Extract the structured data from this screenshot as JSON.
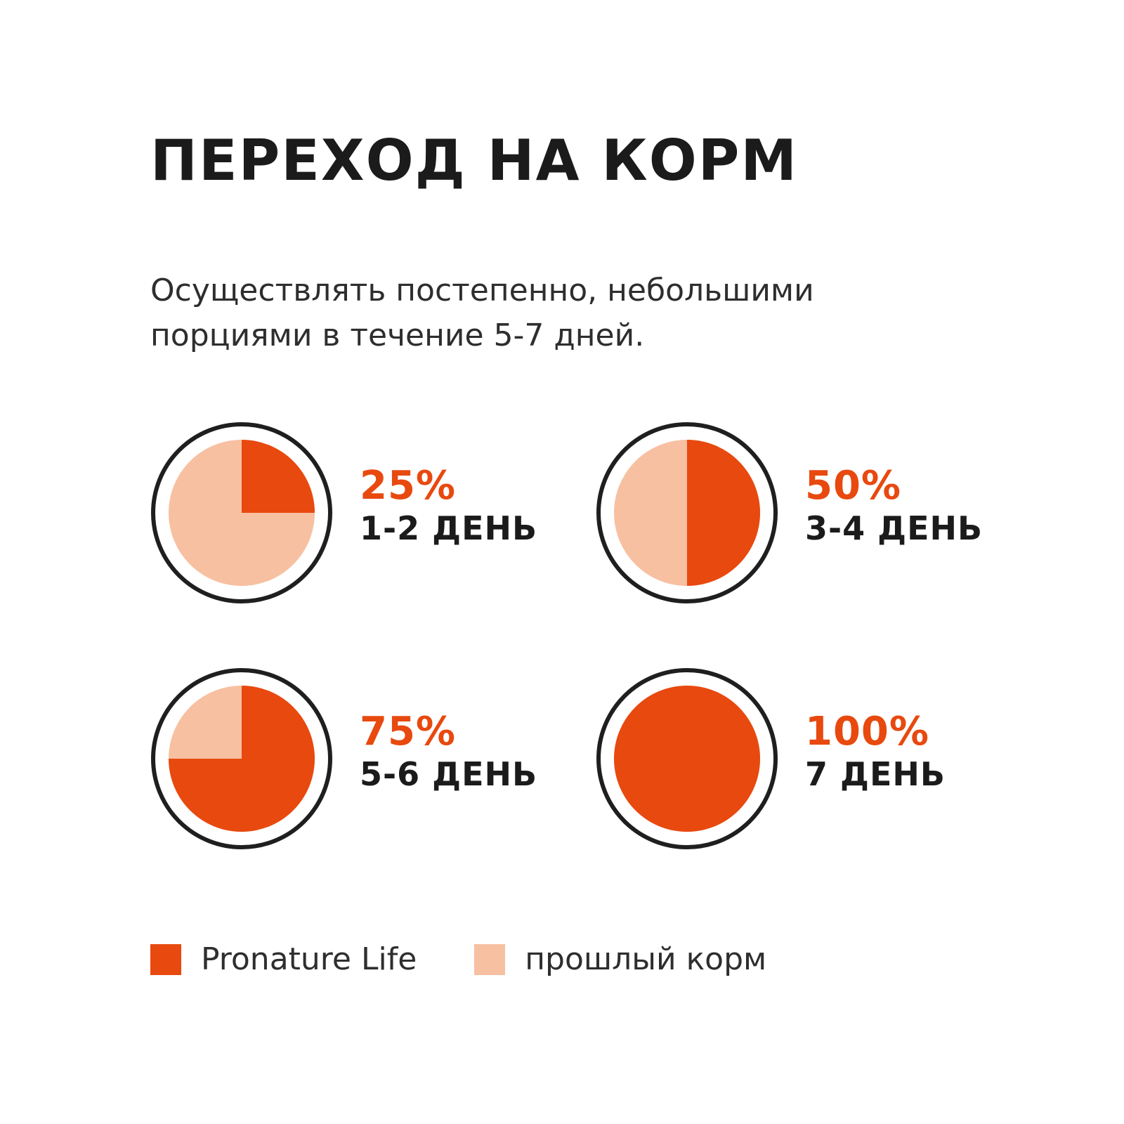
{
  "title": "ПЕРЕХОД НА КОРМ",
  "subtitle_lines": [
    "Осуществлять постепенно, небольшими",
    "порциями в течение 5-7 дней."
  ],
  "colors": {
    "new_food": "#e8490f",
    "old_food": "#f7c0a1",
    "ring": "#1f1f1f"
  },
  "chart_data": {
    "type": "pie",
    "items": [
      {
        "percent_label": "25%",
        "day_label": "1-2 ДЕНЬ",
        "new_food_share": 25,
        "old_food_share": 75
      },
      {
        "percent_label": "50%",
        "day_label": "3-4 ДЕНЬ",
        "new_food_share": 50,
        "old_food_share": 50
      },
      {
        "percent_label": "75%",
        "day_label": "5-6 ДЕНЬ",
        "new_food_share": 75,
        "old_food_share": 25
      },
      {
        "percent_label": "100%",
        "day_label": "7 ДЕНЬ",
        "new_food_share": 100,
        "old_food_share": 0
      }
    ],
    "legend": [
      {
        "label": "Pronature Life",
        "color": "#e8490f"
      },
      {
        "label": "прошлый корм",
        "color": "#f7c0a1"
      }
    ]
  }
}
